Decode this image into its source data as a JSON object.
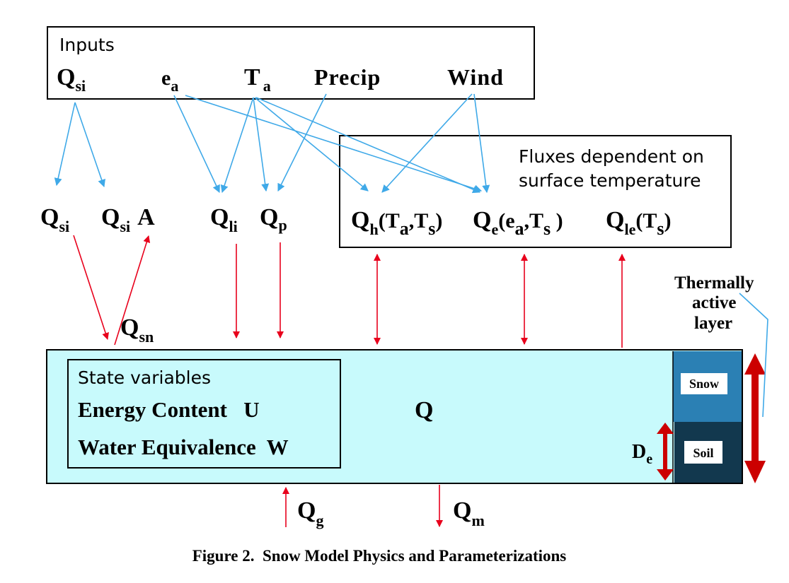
{
  "colors": {
    "input_arrow": "#3fa9e8",
    "flux_arrow": "#e8001c",
    "layer_fill": "#c8fafc",
    "snow_fill": "#2b80b4",
    "soil_fill": "#12384e",
    "thick_arrow": "#cc0000"
  },
  "inputs": {
    "label": "Inputs",
    "qsi": {
      "main": "Q",
      "sub": "si"
    },
    "ea": {
      "main": "e",
      "sub": "a"
    },
    "ta": {
      "main": "T",
      "sub": "a"
    },
    "precip": "Precip",
    "wind": "Wind"
  },
  "fluxes_box": {
    "label_line1": "Fluxes dependent on",
    "label_line2": "surface temperature",
    "qh": {
      "main": "Q",
      "sub": "h",
      "args": [
        "(T",
        "a",
        ",T",
        "s",
        ")"
      ]
    },
    "qe": {
      "main": "Q",
      "sub": "e",
      "args": [
        "(e",
        "a",
        ",T",
        "s",
        " )"
      ]
    },
    "qle": {
      "main": "Q",
      "sub": "le",
      "args": [
        "(T",
        "s",
        ")"
      ]
    }
  },
  "fluxes": {
    "qsi": {
      "main": "Q",
      "sub": "si"
    },
    "qsiA": {
      "main": "Q",
      "sub": "si",
      "suffix": "A"
    },
    "qli": {
      "main": "Q",
      "sub": "li"
    },
    "qp": {
      "main": "Q",
      "sub": "p"
    },
    "qsn": {
      "main": "Q",
      "sub": "sn"
    },
    "q": "Q",
    "qg": {
      "main": "Q",
      "sub": "g"
    },
    "qm": {
      "main": "Q",
      "sub": "m"
    },
    "de": {
      "main": "D",
      "sub": "e"
    }
  },
  "state": {
    "label": "State variables",
    "energy": "Energy Content   U",
    "water": "Water Equivalence  W"
  },
  "layer": {
    "snow": "Snow",
    "soil": "Soil",
    "thermal_line1": "Thermally",
    "thermal_line2": "active",
    "thermal_line3": "layer"
  },
  "caption": "Figure 2.  Snow Model Physics and Parameterizations"
}
